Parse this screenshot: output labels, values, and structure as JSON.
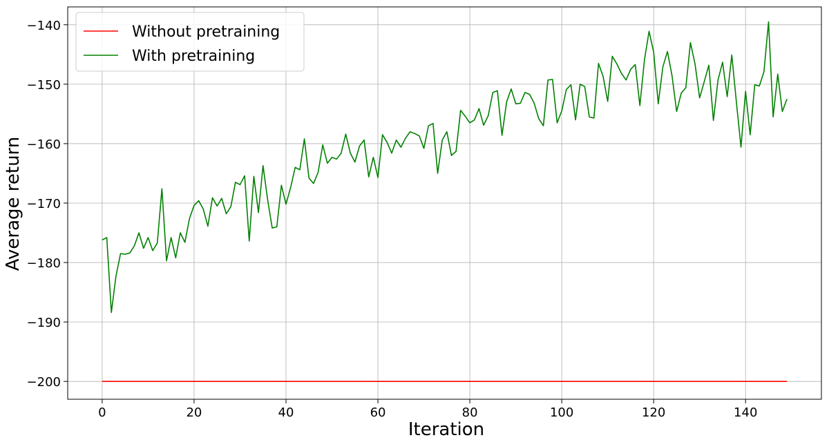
{
  "chart_data": {
    "type": "line",
    "title": "",
    "xlabel": "Iteration",
    "ylabel": "Average return",
    "xlim": [
      -7.5,
      156.5
    ],
    "ylim": [
      -203,
      -137
    ],
    "xticks": [
      0,
      20,
      40,
      60,
      80,
      100,
      120,
      140
    ],
    "yticks": [
      -200,
      -190,
      -180,
      -170,
      -160,
      -150,
      -140
    ],
    "xtick_labels": [
      "0",
      "20",
      "40",
      "60",
      "80",
      "100",
      "120",
      "140"
    ],
    "ytick_labels": [
      "−200",
      "−190",
      "−180",
      "−170",
      "−160",
      "−150",
      "−140"
    ],
    "grid": true,
    "legend_position": "top-left",
    "series": [
      {
        "name": "Without pretraining",
        "color": "#ff0000",
        "x": [
          0,
          149
        ],
        "y": [
          -200,
          -200
        ]
      },
      {
        "name": "With pretraining",
        "color": "#008000",
        "y": [
          -176.2,
          -175.8,
          -188.4,
          -182.3,
          -178.5,
          -178.6,
          -178.4,
          -177.2,
          -175.0,
          -177.6,
          -175.8,
          -178.0,
          -176.7,
          -167.6,
          -179.7,
          -175.8,
          -179.2,
          -175.0,
          -176.6,
          -172.6,
          -170.4,
          -169.6,
          -171.0,
          -173.9,
          -169.1,
          -170.5,
          -169.2,
          -171.8,
          -170.6,
          -166.5,
          -166.9,
          -165.4,
          -176.4,
          -165.5,
          -171.6,
          -163.7,
          -169.4,
          -174.2,
          -174.0,
          -167.0,
          -170.2,
          -167.4,
          -164.0,
          -164.4,
          -159.2,
          -165.8,
          -166.7,
          -164.8,
          -160.2,
          -163.3,
          -162.3,
          -162.6,
          -161.6,
          -158.4,
          -161.6,
          -163.1,
          -160.4,
          -159.4,
          -165.6,
          -162.3,
          -165.7,
          -158.5,
          -159.8,
          -161.6,
          -159.4,
          -160.6,
          -159.1,
          -158.0,
          -158.3,
          -158.7,
          -160.8,
          -157.0,
          -156.6,
          -165.0,
          -159.4,
          -158.0,
          -162.0,
          -161.3,
          -154.4,
          -155.4,
          -156.5,
          -156.0,
          -154.1,
          -156.9,
          -155.3,
          -151.4,
          -151.1,
          -158.6,
          -153.0,
          -150.8,
          -153.3,
          -153.2,
          -151.4,
          -151.7,
          -153.2,
          -155.8,
          -157.0,
          -149.3,
          -149.2,
          -156.5,
          -154.5,
          -150.9,
          -150.1,
          -156.0,
          -150.0,
          -150.4,
          -155.5,
          -155.7,
          -146.5,
          -148.7,
          -152.9,
          -145.3,
          -146.6,
          -148.2,
          -149.3,
          -147.5,
          -146.7,
          -153.6,
          -145.9,
          -141.1,
          -144.6,
          -153.3,
          -147.1,
          -144.5,
          -148.6,
          -154.6,
          -151.5,
          -150.6,
          -143.0,
          -146.6,
          -152.3,
          -149.6,
          -146.8,
          -156.1,
          -149.3,
          -146.3,
          -152.1,
          -145.1,
          -153.0,
          -160.6,
          -151.2,
          -158.5,
          -150.1,
          -150.3,
          -147.9,
          -139.5,
          -155.5,
          -148.3,
          -154.6,
          -152.5
        ]
      }
    ]
  }
}
